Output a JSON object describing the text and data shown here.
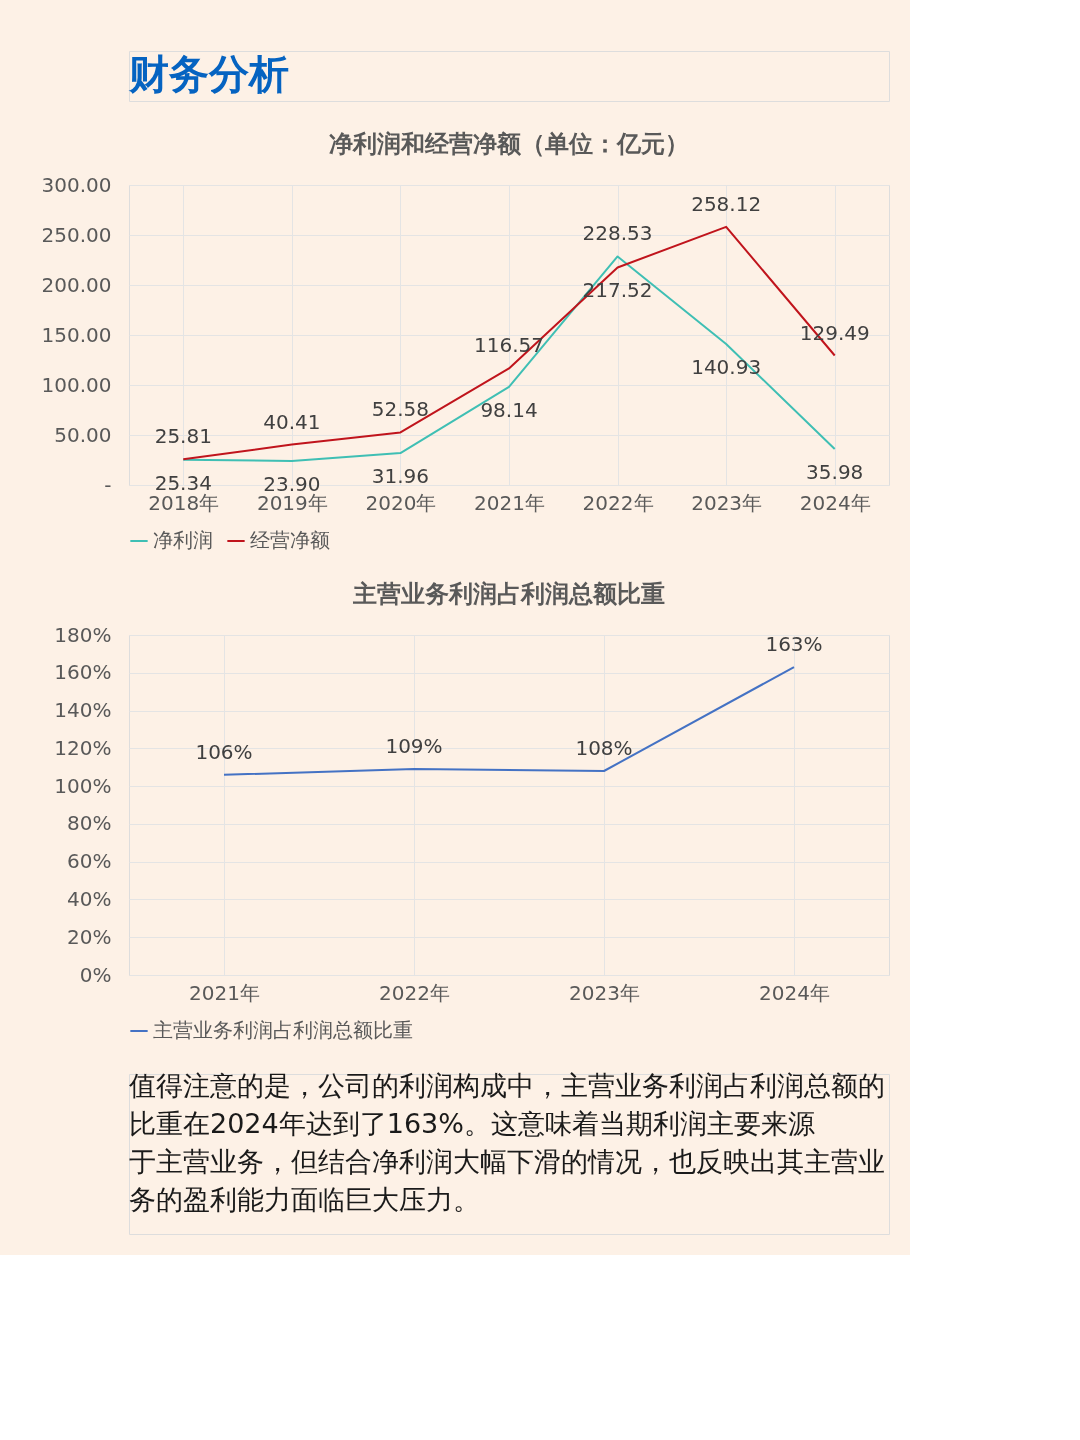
{
  "chart_data": [
    {
      "type": "line",
      "title": "净利润和经营净额（单位：亿元）",
      "annotations": [
        "财务分析"
      ],
      "categories": [
        "2018年",
        "2019年",
        "2020年",
        "2021年",
        "2022年",
        "2023年",
        "2024年"
      ],
      "series": [
        {
          "name": "净利润",
          "color": "#3fbfb4",
          "values": [
            25.34,
            23.9,
            31.96,
            98.14,
            228.53,
            140.93,
            35.98
          ],
          "value_labels": [
            "25.34",
            "23.90",
            "31.96",
            "98.14",
            "228.53",
            "140.93",
            "35.98"
          ]
        },
        {
          "name": "经营净额",
          "color": "#c0141c",
          "values": [
            25.81,
            40.41,
            52.58,
            116.57,
            217.52,
            258.12,
            129.49
          ],
          "value_labels": [
            "25.81",
            "40.41",
            "52.58",
            "116.57",
            "217.52",
            "258.12",
            "129.49"
          ]
        }
      ],
      "ylim": [
        0,
        300
      ],
      "yticks": [
        {
          "value": 0,
          "label": "-"
        },
        {
          "value": 50,
          "label": "50.00"
        },
        {
          "value": 100,
          "label": "100.00"
        },
        {
          "value": 150,
          "label": "150.00"
        },
        {
          "value": 200,
          "label": "200.00"
        },
        {
          "value": 250,
          "label": "250.00"
        },
        {
          "value": 300,
          "label": "300.00"
        }
      ],
      "grid": true,
      "legend": "bottom",
      "marker": "none",
      "line_style": "solid"
    },
    {
      "type": "line",
      "title": "主营业务利润占利润总额比重",
      "annotations": [
        "值得注意的是，公司的利润构成中，主营业务利润占利润总额的比重在2024年达到了163%。这意味着当期利润主要来源于主营业务，但结合净利润大幅下滑的情况，也反映出其主营业务的盈利能力面临巨大压力。"
      ],
      "categories": [
        "2021年",
        "2022年",
        "2023年",
        "2024年"
      ],
      "series": [
        {
          "name": "主营业务利润占利润总额比重",
          "color": "#4472c4",
          "values": [
            106,
            109,
            108,
            163
          ],
          "value_labels": [
            "106%",
            "109%",
            "108%",
            "163%"
          ]
        }
      ],
      "ylim": [
        0,
        180
      ],
      "yticks": [
        {
          "value": 0,
          "label": "0%"
        },
        {
          "value": 20,
          "label": "20%"
        },
        {
          "value": 40,
          "label": "40%"
        },
        {
          "value": 60,
          "label": "60%"
        },
        {
          "value": 80,
          "label": "80%"
        },
        {
          "value": 100,
          "label": "100%"
        },
        {
          "value": 120,
          "label": "120%"
        },
        {
          "value": 140,
          "label": "140%"
        },
        {
          "value": 160,
          "label": "160%"
        },
        {
          "value": 180,
          "label": "180%"
        }
      ],
      "grid": true,
      "legend": "bottom",
      "marker": "none",
      "line_style": "solid"
    }
  ]
}
